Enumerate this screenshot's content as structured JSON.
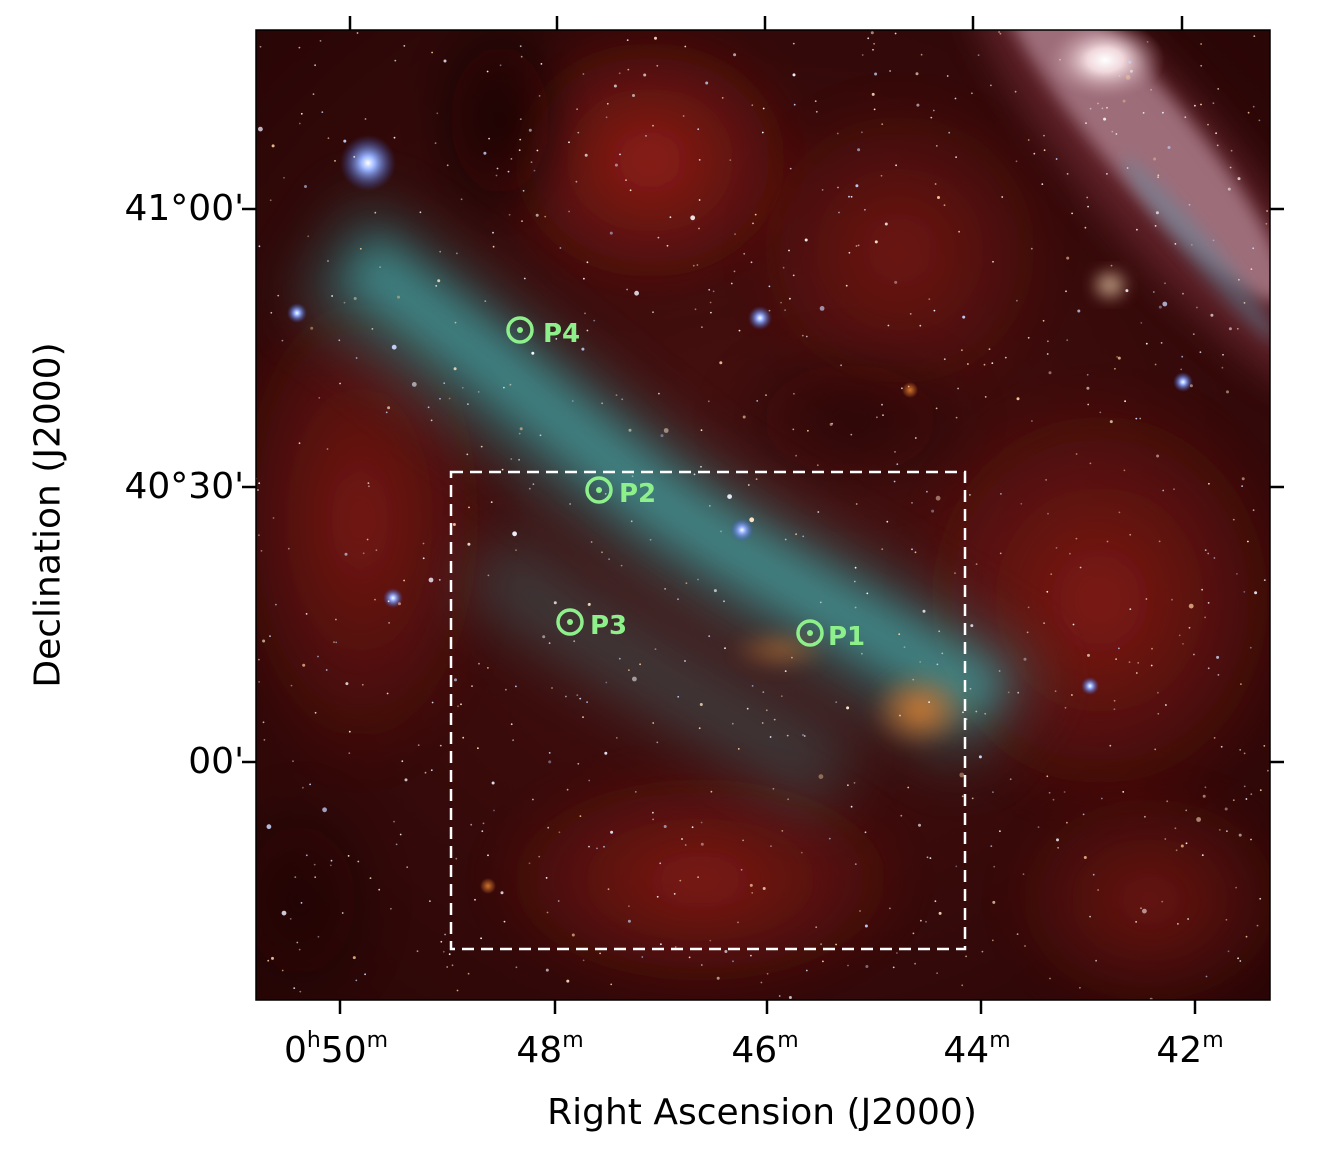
{
  "axes": {
    "x_title": "Right Ascension (J2000)",
    "y_title": "Declination (J2000)",
    "ra_ticks": [
      {
        "hour": "0",
        "minute": "50",
        "show_hour": true
      },
      {
        "hour": "",
        "minute": "48",
        "show_hour": false
      },
      {
        "hour": "",
        "minute": "46",
        "show_hour": false
      },
      {
        "hour": "",
        "minute": "44",
        "show_hour": false
      },
      {
        "hour": "",
        "minute": "42",
        "show_hour": false
      }
    ],
    "dec_ticks": [
      "41°00'",
      "40°30'",
      "00'"
    ],
    "unit_hour": "h",
    "unit_minute": "m"
  },
  "markers": [
    {
      "label": "P1"
    },
    {
      "label": "P2"
    },
    {
      "label": "P3"
    },
    {
      "label": "P4"
    }
  ],
  "colors": {
    "marker": "#8ef08a",
    "box": "#ffffff",
    "background_dust": "#5a1010",
    "filament": "#3fa8a8",
    "galaxy": "#e8c8d0"
  }
}
